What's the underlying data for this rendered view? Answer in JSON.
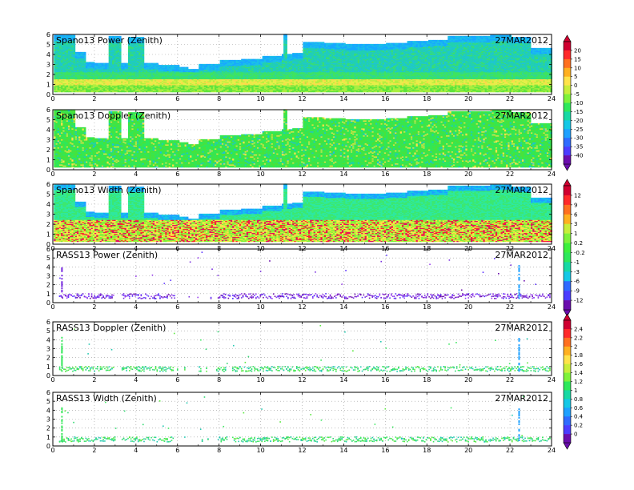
{
  "chart_data": {
    "type": "heatmap",
    "date": "27MAR2012",
    "x_ticks": [
      "0",
      "2",
      "4",
      "6",
      "8",
      "10",
      "12",
      "14",
      "16",
      "18",
      "20",
      "22",
      "24"
    ],
    "xlim": [
      0,
      24
    ],
    "y_ticks": [
      "0",
      "1",
      "2",
      "3",
      "4",
      "5",
      "6"
    ],
    "ylim": [
      0,
      6
    ],
    "panels": [
      {
        "title": "Spano13 Power (Zenith)",
        "kind": "profiler",
        "field": "power",
        "date": "27MAR2012"
      },
      {
        "title": "Spano13 Doppler (Zenith)",
        "kind": "profiler",
        "field": "doppler",
        "date": "27MAR2012"
      },
      {
        "title": "Spano13 Width (Zenith)",
        "kind": "profiler",
        "field": "width",
        "date": "27MAR2012"
      },
      {
        "title": "RASS13 Power (Zenith)",
        "kind": "rass",
        "field": "power",
        "date": "27MAR2012"
      },
      {
        "title": "RASS13 Doppler (Zenith)",
        "kind": "rass",
        "field": "doppler",
        "date": "27MAR2012"
      },
      {
        "title": "RASS13 Width (Zenith)",
        "kind": "rass",
        "field": "width",
        "date": "27MAR2012"
      }
    ],
    "profiler_top_height": [
      [
        0,
        5.9
      ],
      [
        0.5,
        5.9
      ],
      [
        1,
        4.2
      ],
      [
        1.5,
        3.2
      ],
      [
        2,
        3.1
      ],
      [
        2.6,
        5.8
      ],
      [
        3.2,
        3.1
      ],
      [
        3.6,
        5.7
      ],
      [
        4.3,
        3.1
      ],
      [
        5,
        2.9
      ],
      [
        6,
        2.7
      ],
      [
        6.5,
        2.5
      ],
      [
        7,
        3.0
      ],
      [
        8,
        3.4
      ],
      [
        9,
        3.5
      ],
      [
        10,
        3.8
      ],
      [
        11,
        4.0
      ],
      [
        11.1,
        6.0
      ],
      [
        11.2,
        4.0
      ],
      [
        11.5,
        4.1
      ],
      [
        12,
        5.2
      ],
      [
        13,
        5.1
      ],
      [
        14,
        5.0
      ],
      [
        15,
        5.0
      ],
      [
        16,
        5.1
      ],
      [
        17,
        5.3
      ],
      [
        18,
        5.4
      ],
      [
        19,
        5.8
      ],
      [
        20,
        5.8
      ],
      [
        21,
        5.9
      ],
      [
        22,
        5.7
      ],
      [
        23,
        4.6
      ],
      [
        24,
        4.5
      ]
    ],
    "rass_level_km": 0.8,
    "colorbars": [
      {
        "for": "Spano13 Power and Doppler",
        "labels": [
          "20",
          "15",
          "10",
          "5",
          "0",
          "-5",
          "-10",
          "-15",
          "-20",
          "-25",
          "-30",
          "-35",
          "-40"
        ]
      },
      {
        "for": "Spano13 Width and RASS13 Power",
        "labels": [
          "12",
          "9",
          "6",
          "3",
          "1",
          "0.2",
          "-0.2",
          "-1",
          "-3",
          "-6",
          "-9",
          "-12"
        ]
      },
      {
        "for": "RASS13 Doppler and Width",
        "labels": [
          "2.4",
          "2.2",
          "2",
          "1.8",
          "1.6",
          "1.4",
          "1.2",
          "1",
          "0.8",
          "0.6",
          "0.4",
          "0.2",
          "0"
        ]
      }
    ]
  }
}
